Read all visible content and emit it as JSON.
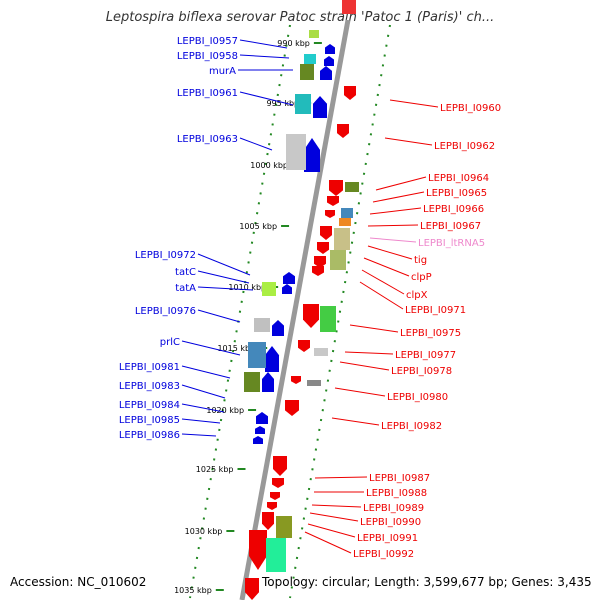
{
  "title": "Leptospira biflexa serovar Patoc strain 'Patoc 1 (Paris)' ch...",
  "accession": "Accession: NC_010602",
  "summary": "Topology: circular; Length: 3,599,677 bp; Genes: 3,435",
  "colors": {
    "forward": "#0000dd",
    "reverse": "#ee0000",
    "rna": "#ee88cc",
    "backbone": "#999999",
    "ticks": "#228822"
  },
  "kbp_ticks": [
    {
      "kbp": 990,
      "label": "990 kbp"
    },
    {
      "kbp": 995,
      "label": "995 kbp"
    },
    {
      "kbp": 1000,
      "label": "1000 kbp"
    },
    {
      "kbp": 1005,
      "label": "1005 kbp"
    },
    {
      "kbp": 1010,
      "label": "1010 kbp"
    },
    {
      "kbp": 1015,
      "label": "1015 kbp"
    },
    {
      "kbp": 1020,
      "label": "1020 kbp"
    },
    {
      "kbp": 1025,
      "label": "1025 kbp"
    },
    {
      "kbp": 1030,
      "label": "1030 kbp"
    },
    {
      "kbp": 1035,
      "label": "1035 kbp"
    }
  ],
  "left_genes": [
    "LEPBI_I0957",
    "LEPBI_I0958",
    "murA",
    "LEPBI_I0961",
    "LEPBI_I0963",
    "LEPBI_I0972",
    "tatC",
    "tatA",
    "LEPBI_I0976",
    "prlC",
    "LEPBI_I0981",
    "LEPBI_I0983",
    "LEPBI_I0984",
    "LEPBI_I0985",
    "LEPBI_I0986"
  ],
  "right_genes": [
    "LEPBI_I0960",
    "LEPBI_I0962",
    "LEPBI_I0964",
    "LEPBI_I0965",
    "LEPBI_I0966",
    "LEPBI_I0967",
    "LEPBI_ltRNA5",
    "tig",
    "clpP",
    "clpX",
    "LEPBI_I0971",
    "LEPBI_I0975",
    "LEPBI_I0977",
    "LEPBI_I0978",
    "LEPBI_I0980",
    "LEPBI_I0982",
    "LEPBI_I0987",
    "LEPBI_I0988",
    "LEPBI_I0989",
    "LEPBI_I0990",
    "LEPBI_I0991",
    "LEPBI_I0992"
  ]
}
